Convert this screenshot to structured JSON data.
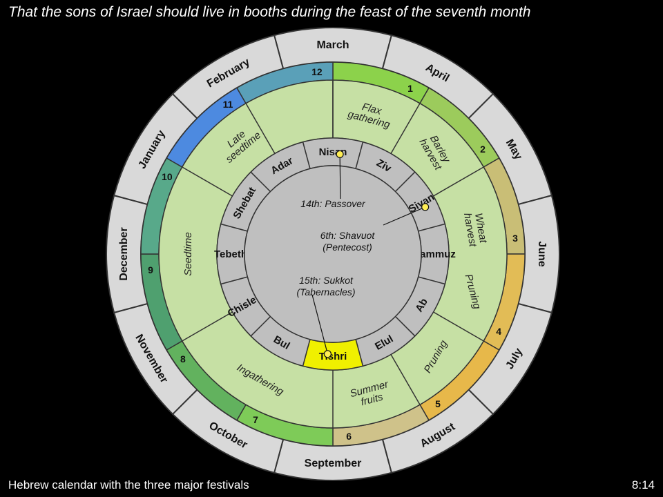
{
  "title": "That the sons of Israel should live in booths during the feast of the seventh month",
  "caption": "Hebrew calendar with the three major festivals",
  "slide_number": "8:14",
  "months": [
    "March",
    "April",
    "May",
    "June",
    "July",
    "August",
    "September",
    "October",
    "November",
    "December",
    "January",
    "February"
  ],
  "month_numbers": [
    "1",
    "2",
    "3",
    "4",
    "5",
    "6",
    "7",
    "8",
    "9",
    "10",
    "11",
    "12"
  ],
  "hebrew_months": [
    "Nisan",
    "Ziv",
    "Sivan",
    "Tammuz",
    "Ab",
    "Elul",
    "Tishri",
    "Bul",
    "Chislev",
    "Tebeth",
    "Shebat",
    "Adar"
  ],
  "seasons": [
    {
      "lines": [
        "Flax",
        "gathering"
      ]
    },
    {
      "lines": [
        "Barley",
        "harvest"
      ]
    },
    {
      "lines": [
        "Wheat",
        "harvest"
      ]
    },
    {
      "lines": [
        "Pruning"
      ]
    },
    {
      "lines": [
        "Pruning"
      ]
    },
    {
      "lines": [
        "Summer",
        "fruits"
      ]
    },
    {
      "lines": [
        "Ingathering"
      ]
    },
    {
      "lines": [
        "Seedtime"
      ]
    },
    {
      "lines": [
        "Late",
        "seedtime"
      ]
    }
  ],
  "festivals": [
    {
      "label_lines": [
        "14th: Passover"
      ]
    },
    {
      "label_lines": [
        "6th: Shavuot",
        "(Pentecost)"
      ]
    },
    {
      "label_lines": [
        "15th: Sukkot",
        "(Tabernacles)"
      ]
    }
  ],
  "colors": {
    "background": "#000000",
    "outer_ring": "#d9d9d9",
    "season_fill": "#c6e0a4",
    "hebrew_ring": "#bfbfbf",
    "center": "#bfbfbf",
    "highlight": "#f0f000",
    "marker": "#ffee55",
    "number_ring": [
      "#8cd24b",
      "#9ccb5c",
      "#c9be76",
      "#e2bc56",
      "#e7b84a",
      "#cfc28a",
      "#7ecb58",
      "#62b25e",
      "#4fa06f",
      "#58a98a",
      "#4d8ae0",
      "#5aa0b8"
    ]
  }
}
